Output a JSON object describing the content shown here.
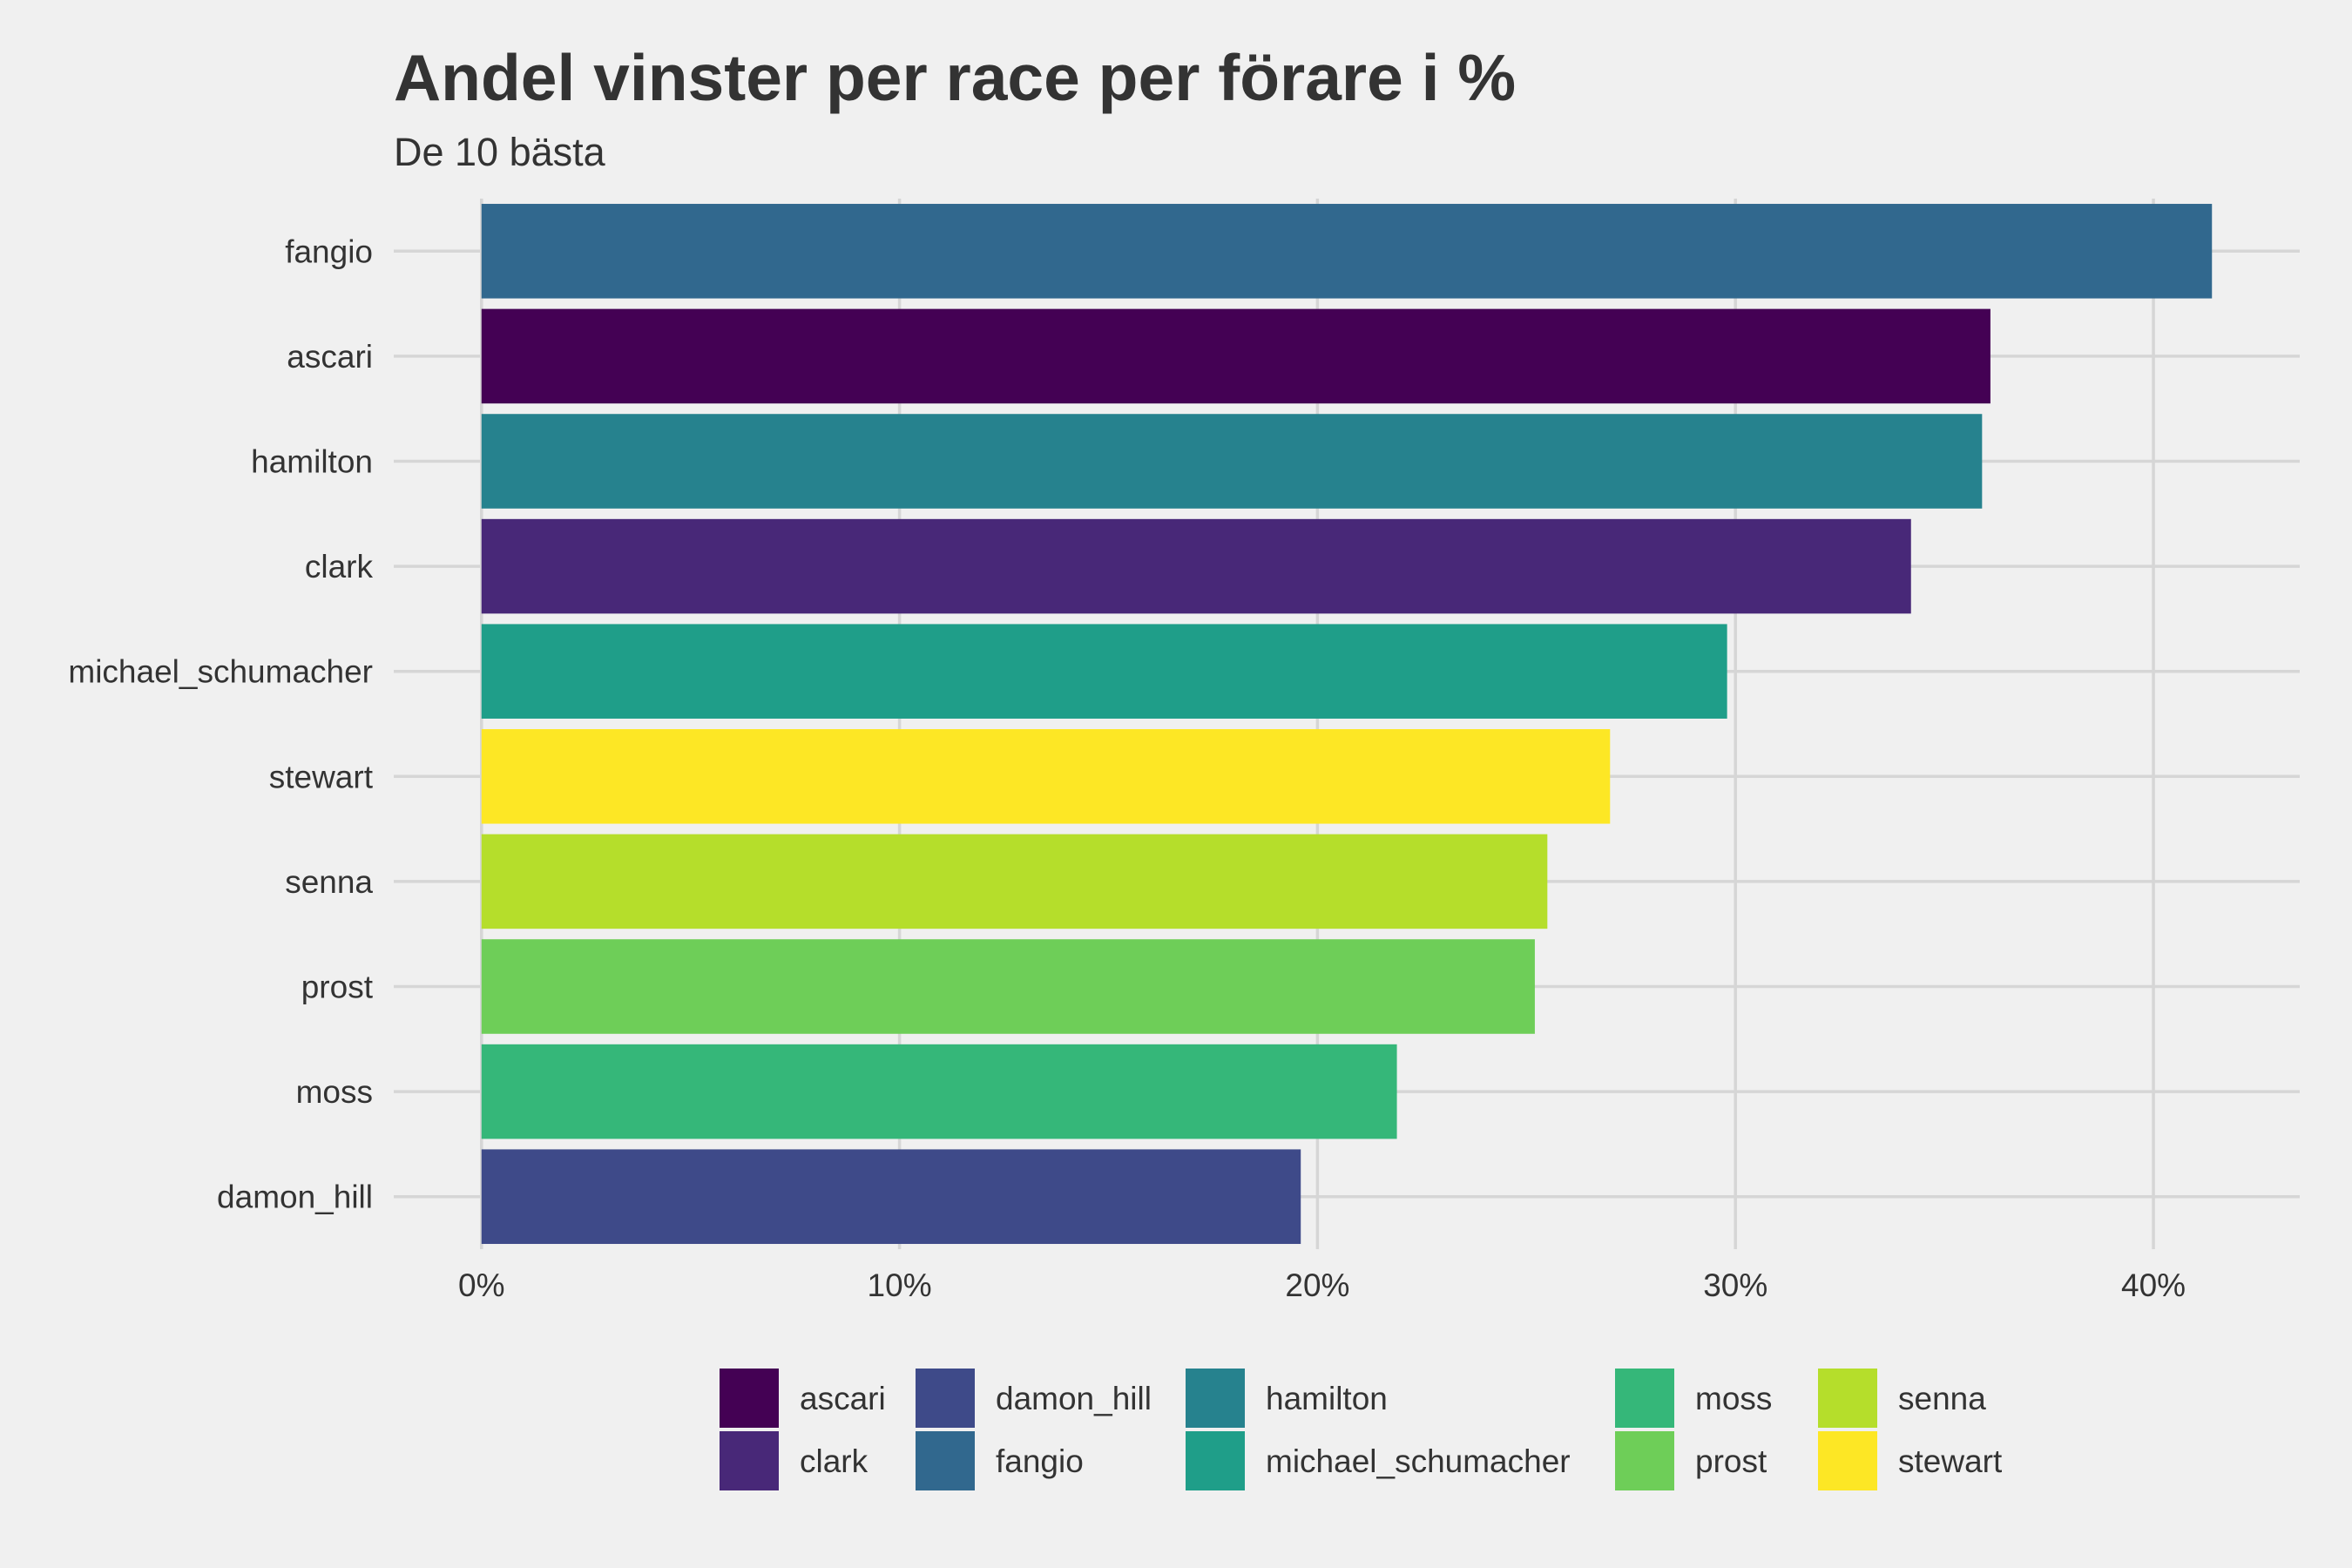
{
  "chart_data": {
    "type": "bar",
    "orientation": "horizontal",
    "title": "Andel vinster per race per förare i %",
    "subtitle": "De 10 bästa",
    "xlabel": "",
    "ylabel": "",
    "categories": [
      "fangio",
      "ascari",
      "hamilton",
      "clark",
      "michael_schumacher",
      "stewart",
      "senna",
      "prost",
      "moss",
      "damon_hill"
    ],
    "values": [
      41.4,
      36.1,
      35.9,
      34.2,
      29.8,
      27.0,
      25.5,
      25.2,
      21.9,
      19.6
    ],
    "xlim": [
      -2.1,
      43.5
    ],
    "x_ticks": [
      0,
      10,
      20,
      30,
      40
    ],
    "x_tick_labels": [
      "0%",
      "10%",
      "20%",
      "30%",
      "40%"
    ],
    "grid": true,
    "legend_position": "bottom",
    "legend": [
      {
        "name": "ascari",
        "color": "#440154"
      },
      {
        "name": "clark",
        "color": "#482878"
      },
      {
        "name": "damon_hill",
        "color": "#3e4a89"
      },
      {
        "name": "fangio",
        "color": "#31688e"
      },
      {
        "name": "hamilton",
        "color": "#26828e"
      },
      {
        "name": "michael_schumacher",
        "color": "#1f9e89"
      },
      {
        "name": "moss",
        "color": "#35b779"
      },
      {
        "name": "prost",
        "color": "#6ece58"
      },
      {
        "name": "senna",
        "color": "#b5de2b"
      },
      {
        "name": "stewart",
        "color": "#fde725"
      }
    ],
    "colors": {
      "fangio": "#31688e",
      "ascari": "#440154",
      "hamilton": "#26828e",
      "clark": "#482878",
      "michael_schumacher": "#1f9e89",
      "stewart": "#fde725",
      "senna": "#b5de2b",
      "prost": "#6ece58",
      "moss": "#35b779",
      "damon_hill": "#3e4a89"
    }
  }
}
